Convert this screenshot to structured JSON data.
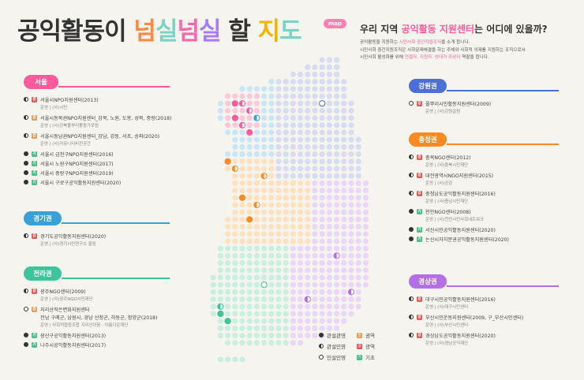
{
  "header": {
    "title_part1": "공익활동이 ",
    "title_part2a": "넘",
    "title_part2b": "실",
    "title_part2c": "넘",
    "title_part2d": "실",
    "title_part3": " 할 ",
    "title_part4a": "지",
    "title_part4b": "도",
    "badge": "map"
  },
  "intro": {
    "title_pre": "우리 지역 ",
    "title_hl": "공익활동 지원센터",
    "title_post": "는 어디에 있을까?",
    "line1_pre": "공익활동을 지원하는 ",
    "line1_hl": "시민사회 중간지원조직",
    "line1_post": "을 소개 합니다.",
    "line2": "시민사회 중간지원조직은 사회문제해결을 하는 주체와 사회적 의제를 지원하는 조직으로서",
    "line3_pre": "시민사회 활성화를 위해 ",
    "line3_hl": "연결자, 지원자, 성대가 조성자",
    "line3_post": " 역할을 합니다."
  },
  "regions": {
    "seoul": {
      "label": "서울",
      "color": "#ff5a9b",
      "entries": [
        {
          "name": "서울시NPO지원센터(2013)",
          "op": "운영 | (사)시민",
          "dot": "half",
          "tag": "metro",
          "tag_text": "광"
        },
        {
          "name": "서울시동북권NPO지원센터_강북, 노원, 도봉, 성북, 중랑(2018)",
          "op": "운영 | (사)강북풀뿌리활동가포럼",
          "dot": "half",
          "tag": "wide",
          "tag_text": "권"
        },
        {
          "name": "서울시동남권NPO지원센터_강남, 강동, 서초, 송파(2020)",
          "op": "운영 | (사)커뮤니티비전공간",
          "dot": "half",
          "tag": "wide",
          "tag_text": "권"
        },
        {
          "name": "서울시 금천구NPO지원센터(2016)",
          "dot": "full",
          "tag": "base",
          "tag_text": "기"
        },
        {
          "name": "서울시 노원구NPO지원센터(2017)",
          "dot": "full",
          "tag": "base",
          "tag_text": "기"
        },
        {
          "name": "서울시 중랑구NPO지원센터(2019)",
          "dot": "full",
          "tag": "base",
          "tag_text": "기"
        },
        {
          "name": "서울시 구로구공익활동지원센터(2020)",
          "dot": "full",
          "tag": "base",
          "tag_text": "기"
        }
      ]
    },
    "gyeonggi": {
      "label": "경기권",
      "color": "#3aa0d8",
      "entries": [
        {
          "name": "경기도공익활동지원센터(2020)",
          "op": "운영 | (사)경기시민연구소 울림",
          "dot": "half",
          "tag": "metro",
          "tag_text": "광"
        }
      ]
    },
    "jeolla": {
      "label": "전라권",
      "color": "#3cc49a",
      "entries": [
        {
          "name": "광주NGO센터(2009)",
          "op": "운영 | (사)광주NGO시민재단",
          "dot": "half",
          "tag": "metro",
          "tag_text": "광"
        },
        {
          "name": "지리산작은변화지원센터",
          "name2": "전남 구례군, 남원시, 경남 산청군, 하동군, 함양군(2018)",
          "op": "운영 | 사회적협동조합 지리산이음 · 아름다운재단",
          "dot": "empty",
          "tag": "wide",
          "tag_text": "권"
        },
        {
          "name": "광산구공익활동지원센터(2013)",
          "dot": "full",
          "tag": "base",
          "tag_text": "기"
        },
        {
          "name": "나주시공익활동지원센터(2017)",
          "dot": "full",
          "tag": "base",
          "tag_text": "기"
        }
      ]
    },
    "gangwon": {
      "label": "강원권",
      "color": "#4a6fd6",
      "entries": [
        {
          "name": "풀뿌리시민활동지원센터(2009)",
          "op": "운영 | (사)강원살림",
          "dot": "empty",
          "tag": "metro",
          "tag_text": "광"
        }
      ]
    },
    "chungcheong": {
      "label": "충청권",
      "color": "#ff8a1f",
      "entries": [
        {
          "name": "충북NGO센터(2012)",
          "op": "운영 | (사)충북시민재단",
          "dot": "half",
          "tag": "metro",
          "tag_text": "광"
        },
        {
          "name": "대전광역시NGO지원센터(2015)",
          "op": "운영 | (사)공감",
          "dot": "half",
          "tag": "metro",
          "tag_text": "광"
        },
        {
          "name": "충청남도공익활동지원센터(2016)",
          "op": "운영 | (사)충남시민재단",
          "dot": "half",
          "tag": "metro",
          "tag_text": "광"
        },
        {
          "name": "천안NGO센터(2008)",
          "op": "운영 | (사)천안시민사회네트워크",
          "dot": "full",
          "tag": "base",
          "tag_text": "기"
        },
        {
          "name": "서산시민공익활동지원센터(2020)",
          "dot": "full",
          "tag": "base",
          "tag_text": "기"
        },
        {
          "name": "논산시자치분권공익활동지원센터(2020)",
          "dot": "full",
          "tag": "base",
          "tag_text": "기"
        }
      ]
    },
    "gyeongsang": {
      "label": "경상권",
      "color": "#b46ee6",
      "entries": [
        {
          "name": "대구시민공익활동지원센터(2016)",
          "op": "운영 | (사)대구시민센터",
          "dot": "half",
          "tag": "metro",
          "tag_text": "광"
        },
        {
          "name": "부산시민운동지원센터(2009, 구_부산시민센터)",
          "op": "운영 | (사)부산시민센터",
          "dot": "half",
          "tag": "metro",
          "tag_text": "광"
        },
        {
          "name": "경상남도공익활동지원센터(2020)",
          "op": "운영 | (사)경남공익재단",
          "dot": "half",
          "tag": "metro",
          "tag_text": "광"
        }
      ]
    }
  },
  "legend": {
    "public": "관설관영",
    "public_private": "관설민영",
    "private": "민설민영",
    "wide": "권역",
    "wide_tag": "권",
    "metro": "광역",
    "metro_tag": "광",
    "base": "기초",
    "base_tag": "기"
  },
  "map_colors": {
    "base": "#dfe2ec",
    "seoul": "#ffc6dc",
    "gyeonggi": "#c8e6f8",
    "gangwon": "#d8dcf0",
    "chungcheong": "#ffe1c0",
    "jeolla": "#c8efe2",
    "gyeongsang": "#ead6f6"
  }
}
